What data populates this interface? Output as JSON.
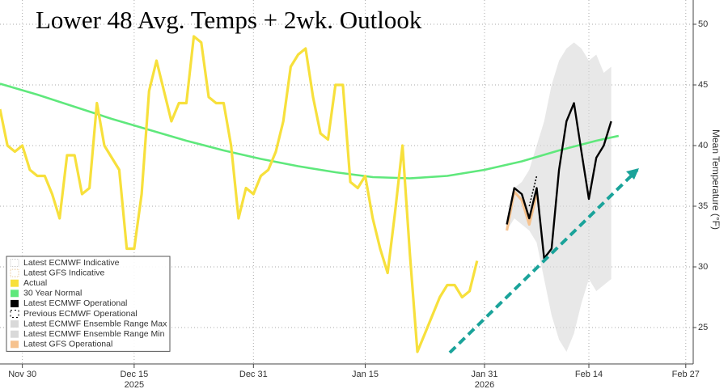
{
  "chart_data": {
    "type": "line",
    "title": "Lower 48 Avg. Temps + 2wk. Outlook",
    "y_axis_label": "Mean Temperature (°F)",
    "xlim": [
      "2025-11-27",
      "2026-02-28"
    ],
    "xticks": [
      {
        "value": "2025-11-30",
        "label": "Nov 30"
      },
      {
        "value": "2025-12-15",
        "label": "Dec 15"
      },
      {
        "value": "2025-12-31",
        "label": "Dec 31"
      },
      {
        "value": "2026-01-15",
        "label": "Jan 15"
      },
      {
        "value": "2026-01-31",
        "label": "Jan 31"
      },
      {
        "value": "2026-02-14",
        "label": "Feb 14"
      },
      {
        "value": "2026-02-27",
        "label": "Feb 27"
      }
    ],
    "year_labels": [
      {
        "value": "2025-12-15",
        "label": "2025"
      },
      {
        "value": "2026-01-31",
        "label": "2026"
      }
    ],
    "ylim": [
      22,
      52
    ],
    "yticks": [
      25,
      30,
      35,
      40,
      45,
      50
    ],
    "grid": true,
    "legend": "lower left",
    "series": [
      {
        "name": "Latest ECMWF Indicative",
        "color": "#cccccc",
        "style": "outline",
        "x": [],
        "values": []
      },
      {
        "name": "Latest GFS Indicative",
        "color": "#e8c9a0",
        "style": "outline",
        "x": [],
        "values": []
      },
      {
        "name": "Actual",
        "color": "#f7e03c",
        "style": "line",
        "x": [
          "2025-11-27",
          "2025-11-28",
          "2025-11-29",
          "2025-11-30",
          "2025-12-01",
          "2025-12-02",
          "2025-12-03",
          "2025-12-04",
          "2025-12-05",
          "2025-12-06",
          "2025-12-07",
          "2025-12-08",
          "2025-12-09",
          "2025-12-10",
          "2025-12-11",
          "2025-12-12",
          "2025-12-13",
          "2025-12-14",
          "2025-12-15",
          "2025-12-16",
          "2025-12-17",
          "2025-12-18",
          "2025-12-19",
          "2025-12-20",
          "2025-12-21",
          "2025-12-22",
          "2025-12-23",
          "2025-12-24",
          "2025-12-25",
          "2025-12-26",
          "2025-12-27",
          "2025-12-28",
          "2025-12-29",
          "2025-12-30",
          "2025-12-31",
          "2026-01-01",
          "2026-01-02",
          "2026-01-03",
          "2026-01-04",
          "2026-01-05",
          "2026-01-06",
          "2026-01-07",
          "2026-01-08",
          "2026-01-09",
          "2026-01-10",
          "2026-01-11",
          "2026-01-12",
          "2026-01-13",
          "2026-01-14",
          "2026-01-15",
          "2026-01-16",
          "2026-01-17",
          "2026-01-18",
          "2026-01-19",
          "2026-01-20",
          "2026-01-21",
          "2026-01-22",
          "2026-01-23",
          "2026-01-24",
          "2026-01-25",
          "2026-01-26",
          "2026-01-27",
          "2026-01-28",
          "2026-01-29",
          "2026-01-30",
          "2026-01-31",
          "2026-02-01"
        ],
        "values": [
          43,
          40,
          39.5,
          40,
          38,
          37.5,
          37.5,
          36,
          34,
          39.2,
          39.2,
          36,
          36.5,
          43.5,
          40,
          39,
          38,
          31.5,
          31.5,
          36,
          44.5,
          47,
          44.5,
          42,
          43.5,
          43.5,
          49,
          48.5,
          44,
          43.5,
          43.5,
          40,
          34,
          36.5,
          36,
          37.5,
          38,
          39.5,
          42,
          46.5,
          47.5,
          48,
          44,
          41,
          40.5,
          45,
          45,
          37,
          36.5,
          37.5,
          34,
          31.5,
          29.5,
          34.5,
          40,
          31,
          23,
          24.5,
          26,
          27.5,
          28.5,
          28.5,
          27.5,
          28,
          30.5,
          null,
          null
        ]
      },
      {
        "name": "30 Year Normal",
        "color": "#5fe87c",
        "style": "line",
        "x": [
          "2025-11-27",
          "2025-12-02",
          "2025-12-07",
          "2025-12-12",
          "2025-12-17",
          "2025-12-22",
          "2025-12-27",
          "2026-01-01",
          "2026-01-06",
          "2026-01-11",
          "2026-01-16",
          "2026-01-21",
          "2026-01-26",
          "2026-01-31",
          "2026-02-05",
          "2026-02-10",
          "2026-02-15",
          "2026-02-18"
        ],
        "values": [
          45.1,
          44.2,
          43.2,
          42.2,
          41.3,
          40.4,
          39.6,
          38.9,
          38.3,
          37.8,
          37.4,
          37.3,
          37.5,
          38,
          38.7,
          39.6,
          40.4,
          40.8
        ]
      },
      {
        "name": "Latest ECMWF Operational",
        "color": "#000000",
        "style": "line",
        "x": [
          "2026-02-03",
          "2026-02-04",
          "2026-02-05",
          "2026-02-06",
          "2026-02-07",
          "2026-02-08",
          "2026-02-09",
          "2026-02-10",
          "2026-02-11",
          "2026-02-12",
          "2026-02-13",
          "2026-02-14",
          "2026-02-15",
          "2026-02-16",
          "2026-02-17"
        ],
        "values": [
          33.5,
          36.5,
          36,
          34,
          36.5,
          30.7,
          31.5,
          38,
          42,
          43.5,
          39.5,
          35.6,
          39,
          40,
          42
        ]
      },
      {
        "name": "Previous ECMWF Operational",
        "color": "#000000",
        "style": "dashed",
        "x": [
          "2026-02-06",
          "2026-02-07"
        ],
        "values": [
          35,
          37.5
        ]
      },
      {
        "name": "Latest ECMWF Ensemble Range Max",
        "color": "#d9d9d9",
        "style": "band-max",
        "x": [
          "2026-02-03",
          "2026-02-04",
          "2026-02-05",
          "2026-02-06",
          "2026-02-07",
          "2026-02-08",
          "2026-02-09",
          "2026-02-10",
          "2026-02-11",
          "2026-02-12",
          "2026-02-13",
          "2026-02-14",
          "2026-02-15",
          "2026-02-16",
          "2026-02-17"
        ],
        "values": [
          34,
          36.5,
          37,
          38,
          40,
          42,
          45,
          47,
          48,
          48.5,
          48,
          47,
          47.5,
          46,
          46.5
        ]
      },
      {
        "name": "Latest ECMWF Ensemble Range Min",
        "color": "#d9d9d9",
        "style": "band-min",
        "x": [
          "2026-02-03",
          "2026-02-04",
          "2026-02-05",
          "2026-02-06",
          "2026-02-07",
          "2026-02-08",
          "2026-02-09",
          "2026-02-10",
          "2026-02-11",
          "2026-02-12",
          "2026-02-13",
          "2026-02-14",
          "2026-02-15",
          "2026-02-16",
          "2026-02-17"
        ],
        "values": [
          33,
          34,
          33.5,
          33,
          32,
          29,
          26,
          24,
          23,
          24.5,
          27,
          29,
          28,
          28.5,
          29
        ]
      },
      {
        "name": "Latest GFS Operational",
        "color": "#f6c28e",
        "style": "line",
        "x": [
          "2026-02-03",
          "2026-02-04",
          "2026-02-05",
          "2026-02-06",
          "2026-02-07"
        ],
        "values": [
          33,
          36.2,
          35.5,
          33.5,
          36
        ]
      }
    ]
  }
}
